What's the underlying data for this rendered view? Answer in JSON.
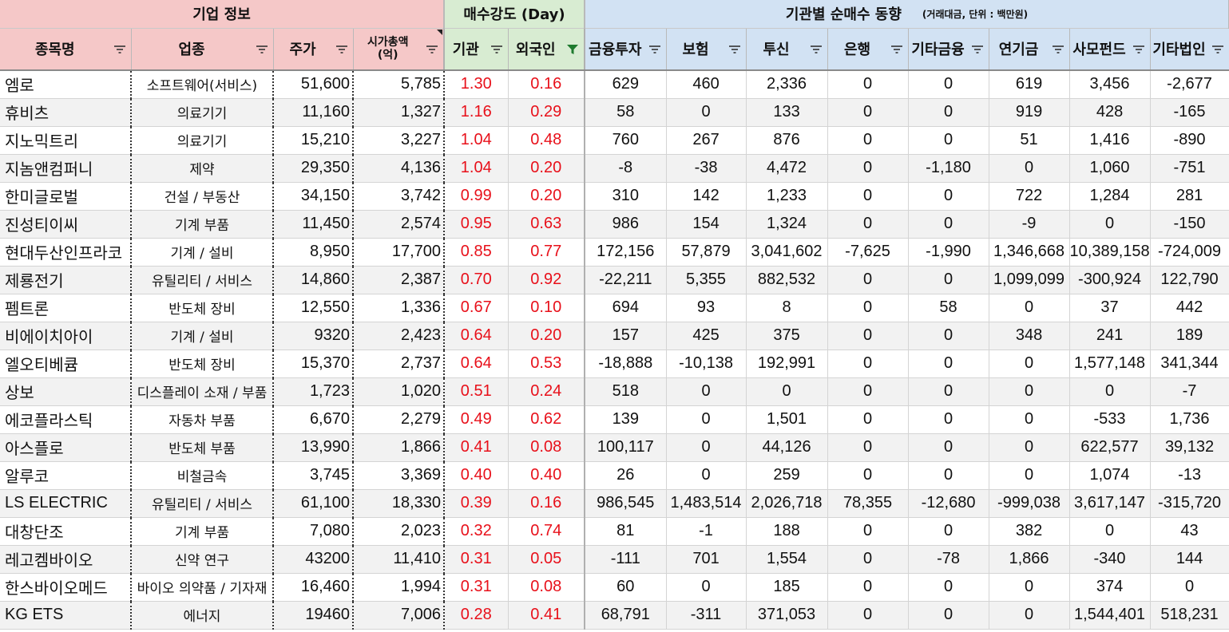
{
  "groups": {
    "company_info": "기업 정보",
    "buy_strength": "매수강도 (Day)",
    "inst_net": "기관별 순매수 동향",
    "inst_note": "(거래대금, 단위 : 백만원)"
  },
  "columns": {
    "name": "종목명",
    "sector": "업종",
    "price": "주가",
    "marketcap_line1": "시가총액",
    "marketcap_line2": "(억)",
    "inst": "기관",
    "foreign": "외국인",
    "fin_invest": "금융투자",
    "insurance": "보험",
    "trust": "투신",
    "bank": "은행",
    "other_fin": "기타금융",
    "pension": "연기금",
    "private_fund": "사모펀드",
    "other_corp": "기타법인"
  },
  "filter_icons": {
    "default": "filter-dropdown-icon",
    "active": "filter-active-icon"
  },
  "colors": {
    "company_header": "#f5c8c8",
    "strength_header": "#d8ecd2",
    "inst_header": "#d2e2f3",
    "strength_value": "#e8101a",
    "active_filter": "#1e7a2e"
  },
  "rows": [
    {
      "name": "엠로",
      "sector": "소프트웨어(서비스)",
      "price": "51,600",
      "cap": "5,785",
      "inst": "1.30",
      "foreign": "0.16",
      "fin": "629",
      "ins": "460",
      "trust": "2,336",
      "bank": "0",
      "ofin": "0",
      "pension": "619",
      "pfund": "3,456",
      "ocorp": "-2,677"
    },
    {
      "name": "휴비츠",
      "sector": "의료기기",
      "price": "11,160",
      "cap": "1,327",
      "inst": "1.16",
      "foreign": "0.29",
      "fin": "58",
      "ins": "0",
      "trust": "133",
      "bank": "0",
      "ofin": "0",
      "pension": "919",
      "pfund": "428",
      "ocorp": "-165"
    },
    {
      "name": "지노믹트리",
      "sector": "의료기기",
      "price": "15,210",
      "cap": "3,227",
      "inst": "1.04",
      "foreign": "0.48",
      "fin": "760",
      "ins": "267",
      "trust": "876",
      "bank": "0",
      "ofin": "0",
      "pension": "51",
      "pfund": "1,416",
      "ocorp": "-890"
    },
    {
      "name": "지놈앤컴퍼니",
      "sector": "제약",
      "price": "29,350",
      "cap": "4,136",
      "inst": "1.04",
      "foreign": "0.20",
      "fin": "-8",
      "ins": "-38",
      "trust": "4,472",
      "bank": "0",
      "ofin": "-1,180",
      "pension": "0",
      "pfund": "1,060",
      "ocorp": "-751"
    },
    {
      "name": "한미글로벌",
      "sector": "건설 / 부동산",
      "price": "34,150",
      "cap": "3,742",
      "inst": "0.99",
      "foreign": "0.20",
      "fin": "310",
      "ins": "142",
      "trust": "1,233",
      "bank": "0",
      "ofin": "0",
      "pension": "722",
      "pfund": "1,284",
      "ocorp": "281"
    },
    {
      "name": "진성티이씨",
      "sector": "기계 부품",
      "price": "11,450",
      "cap": "2,574",
      "inst": "0.95",
      "foreign": "0.63",
      "fin": "986",
      "ins": "154",
      "trust": "1,324",
      "bank": "0",
      "ofin": "0",
      "pension": "-9",
      "pfund": "0",
      "ocorp": "-150"
    },
    {
      "name": "현대두산인프라코",
      "sector": "기계 / 설비",
      "price": "8,950",
      "cap": "17,700",
      "inst": "0.85",
      "foreign": "0.77",
      "fin": "172,156",
      "ins": "57,879",
      "trust": "3,041,602",
      "bank": "-7,625",
      "ofin": "-1,990",
      "pension": "1,346,668",
      "pfund": "10,389,158",
      "ocorp": "-724,009"
    },
    {
      "name": "제룡전기",
      "sector": "유틸리티 / 서비스",
      "price": "14,860",
      "cap": "2,387",
      "inst": "0.70",
      "foreign": "0.92",
      "fin": "-22,211",
      "ins": "5,355",
      "trust": "882,532",
      "bank": "0",
      "ofin": "0",
      "pension": "1,099,099",
      "pfund": "-300,924",
      "ocorp": "122,790"
    },
    {
      "name": "펨트론",
      "sector": "반도체 장비",
      "price": "12,550",
      "cap": "1,336",
      "inst": "0.67",
      "foreign": "0.10",
      "fin": "694",
      "ins": "93",
      "trust": "8",
      "bank": "0",
      "ofin": "58",
      "pension": "0",
      "pfund": "37",
      "ocorp": "442"
    },
    {
      "name": "비에이치아이",
      "sector": "기계 / 설비",
      "price": "9320",
      "cap": "2,423",
      "inst": "0.64",
      "foreign": "0.20",
      "fin": "157",
      "ins": "425",
      "trust": "375",
      "bank": "0",
      "ofin": "0",
      "pension": "348",
      "pfund": "241",
      "ocorp": "189"
    },
    {
      "name": "엘오티베큠",
      "sector": "반도체 장비",
      "price": "15,370",
      "cap": "2,737",
      "inst": "0.64",
      "foreign": "0.53",
      "fin": "-18,888",
      "ins": "-10,138",
      "trust": "192,991",
      "bank": "0",
      "ofin": "0",
      "pension": "0",
      "pfund": "1,577,148",
      "ocorp": "341,344"
    },
    {
      "name": "상보",
      "sector": "디스플레이 소재 / 부품",
      "price": "1,723",
      "cap": "1,020",
      "inst": "0.51",
      "foreign": "0.24",
      "fin": "518",
      "ins": "0",
      "trust": "0",
      "bank": "0",
      "ofin": "0",
      "pension": "0",
      "pfund": "0",
      "ocorp": "-7"
    },
    {
      "name": "에코플라스틱",
      "sector": "자동차 부품",
      "price": "6,670",
      "cap": "2,279",
      "inst": "0.49",
      "foreign": "0.62",
      "fin": "139",
      "ins": "0",
      "trust": "1,501",
      "bank": "0",
      "ofin": "0",
      "pension": "0",
      "pfund": "-533",
      "ocorp": "1,736"
    },
    {
      "name": "아스플로",
      "sector": "반도체 부품",
      "price": "13,990",
      "cap": "1,866",
      "inst": "0.41",
      "foreign": "0.08",
      "fin": "100,117",
      "ins": "0",
      "trust": "44,126",
      "bank": "0",
      "ofin": "0",
      "pension": "0",
      "pfund": "622,577",
      "ocorp": "39,132"
    },
    {
      "name": "알루코",
      "sector": "비철금속",
      "price": "3,745",
      "cap": "3,369",
      "inst": "0.40",
      "foreign": "0.40",
      "fin": "26",
      "ins": "0",
      "trust": "259",
      "bank": "0",
      "ofin": "0",
      "pension": "0",
      "pfund": "1,074",
      "ocorp": "-13"
    },
    {
      "name": "LS ELECTRIC",
      "sector": "유틸리티 / 서비스",
      "price": "61,100",
      "cap": "18,330",
      "inst": "0.39",
      "foreign": "0.16",
      "fin": "986,545",
      "ins": "1,483,514",
      "trust": "2,026,718",
      "bank": "78,355",
      "ofin": "-12,680",
      "pension": "-999,038",
      "pfund": "3,617,147",
      "ocorp": "-315,720"
    },
    {
      "name": "대창단조",
      "sector": "기계 부품",
      "price": "7,080",
      "cap": "2,023",
      "inst": "0.32",
      "foreign": "0.74",
      "fin": "81",
      "ins": "-1",
      "trust": "188",
      "bank": "0",
      "ofin": "0",
      "pension": "382",
      "pfund": "0",
      "ocorp": "43"
    },
    {
      "name": "레고켐바이오",
      "sector": "신약 연구",
      "price": "43200",
      "cap": "11,410",
      "inst": "0.31",
      "foreign": "0.05",
      "fin": "-111",
      "ins": "701",
      "trust": "1,554",
      "bank": "0",
      "ofin": "-78",
      "pension": "1,866",
      "pfund": "-340",
      "ocorp": "144"
    },
    {
      "name": "한스바이오메드",
      "sector": "바이오 의약품 / 기자재",
      "price": "16,460",
      "cap": "1,994",
      "inst": "0.31",
      "foreign": "0.08",
      "fin": "60",
      "ins": "0",
      "trust": "185",
      "bank": "0",
      "ofin": "0",
      "pension": "0",
      "pfund": "374",
      "ocorp": "0"
    },
    {
      "name": "KG ETS",
      "sector": "에너지",
      "price": "19460",
      "cap": "7,006",
      "inst": "0.28",
      "foreign": "0.41",
      "fin": "68,791",
      "ins": "-311",
      "trust": "371,053",
      "bank": "0",
      "ofin": "0",
      "pension": "0",
      "pfund": "1,544,401",
      "ocorp": "518,231"
    }
  ]
}
